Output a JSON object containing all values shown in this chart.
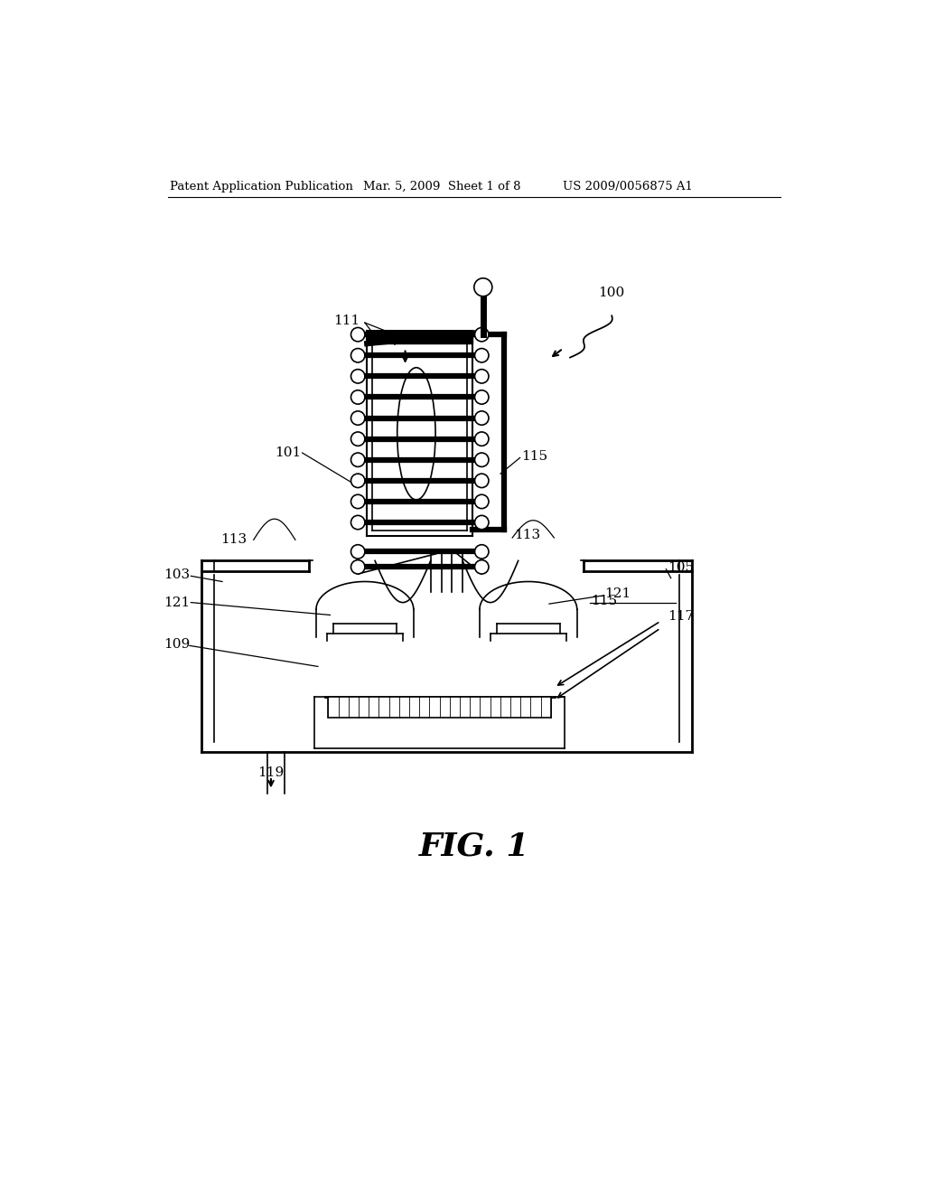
{
  "bg_color": "#ffffff",
  "header_left": "Patent Application Publication",
  "header_mid": "Mar. 5, 2009  Sheet 1 of 8",
  "header_right": "US 2009/0056875 A1",
  "fig_label": "FIG. 1"
}
